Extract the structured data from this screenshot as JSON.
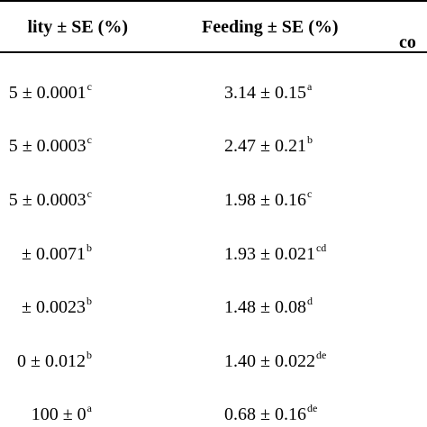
{
  "table": {
    "headers": {
      "mortality": "lity ± SE (%)",
      "feeding": "Feeding ± SE (%)",
      "consumption": "co"
    },
    "rows": [
      {
        "mortality": "5 ± 0.0001",
        "mortality_sup": "c",
        "feeding": "3.14 ± 0.15",
        "feeding_sup": "a"
      },
      {
        "mortality": "5 ± 0.0003",
        "mortality_sup": "c",
        "feeding": "2.47 ± 0.21",
        "feeding_sup": "b"
      },
      {
        "mortality": "5 ± 0.0003",
        "mortality_sup": "c",
        "feeding": "1.98 ± 0.16",
        "feeding_sup": "c"
      },
      {
        "mortality": "± 0.0071",
        "mortality_sup": "b",
        "feeding": "1.93 ± 0.021",
        "feeding_sup": "cd"
      },
      {
        "mortality": "± 0.0023",
        "mortality_sup": "b",
        "feeding": "1.48 ± 0.08",
        "feeding_sup": "d"
      },
      {
        "mortality": "0 ± 0.012",
        "mortality_sup": "b",
        "feeding": "1.40 ± 0.022",
        "feeding_sup": "de"
      },
      {
        "mortality": "100 ± 0",
        "mortality_sup": "a",
        "feeding": "0.68 ± 0.16",
        "feeding_sup": "de"
      }
    ]
  }
}
